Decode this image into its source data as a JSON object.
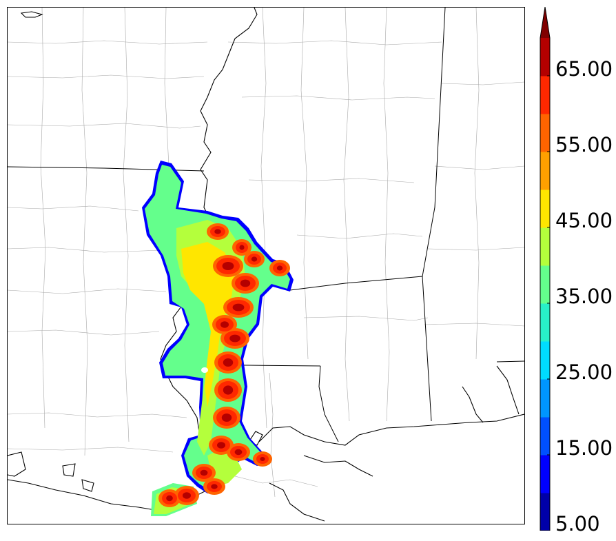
{
  "colorbar": {
    "ticks": [
      "5.00",
      "15.00",
      "25.00",
      "35.00",
      "45.00",
      "55.00",
      "65.00"
    ],
    "levels": [
      5,
      10,
      15,
      20,
      25,
      30,
      35,
      40,
      45,
      50,
      55,
      60,
      65,
      70
    ],
    "colors": [
      "#0000a8",
      "#0000ff",
      "#0050ff",
      "#0096ff",
      "#00dcff",
      "#28f0c8",
      "#64ff8c",
      "#b4ff3c",
      "#ffe600",
      "#ffa000",
      "#ff6400",
      "#ff2800",
      "#b40000"
    ],
    "extend_color": "#800000"
  },
  "map": {
    "background": "#ffffff",
    "county_line_color": "#999999",
    "state_line_color": "#000000",
    "coast_line_color": "#000000"
  }
}
